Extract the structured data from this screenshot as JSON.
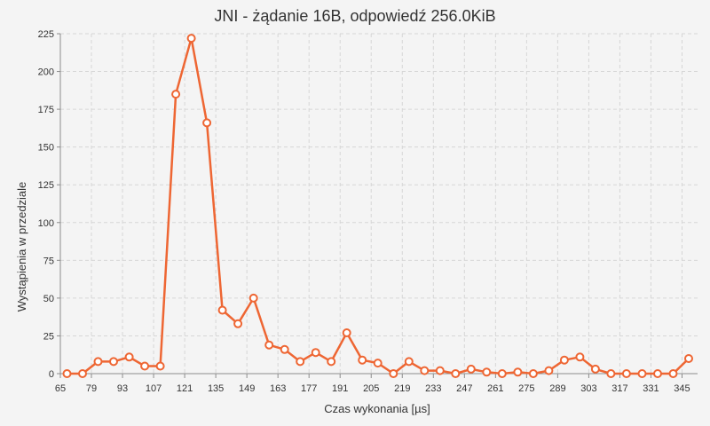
{
  "chart_data": {
    "type": "line",
    "title": "JNI - żądanie 16B, odpowiedź 256.0KiB",
    "xlabel": "Czas wykonania [µs]",
    "ylabel": "Wystąpienia w przedziale",
    "xlim": [
      65,
      352
    ],
    "ylim": [
      0,
      225
    ],
    "x_ticks": [
      65,
      79,
      93,
      107,
      121,
      135,
      149,
      163,
      177,
      191,
      205,
      219,
      233,
      247,
      261,
      275,
      289,
      303,
      317,
      331,
      345
    ],
    "y_ticks": [
      0,
      25,
      50,
      75,
      100,
      125,
      150,
      175,
      200,
      225
    ],
    "grid": true,
    "legend": "none",
    "series_color": "#ee6633",
    "series": [
      {
        "x": [
          68,
          75,
          82,
          89,
          96,
          103,
          110,
          117,
          124,
          131,
          138,
          145,
          152,
          159,
          166,
          173,
          180,
          187,
          194,
          201,
          208,
          215,
          222,
          229,
          236,
          243,
          250,
          257,
          264,
          271,
          278,
          285,
          292,
          299,
          306,
          313,
          320,
          327,
          334,
          341,
          348
        ],
        "values": [
          0,
          0,
          8,
          8,
          11,
          5,
          5,
          185,
          222,
          166,
          42,
          33,
          50,
          19,
          16,
          8,
          14,
          8,
          27,
          9,
          7,
          0,
          8,
          2,
          2,
          0,
          3,
          1,
          0,
          1,
          0,
          2,
          9,
          11,
          3,
          0,
          0,
          0,
          0,
          0,
          10
        ]
      }
    ]
  }
}
